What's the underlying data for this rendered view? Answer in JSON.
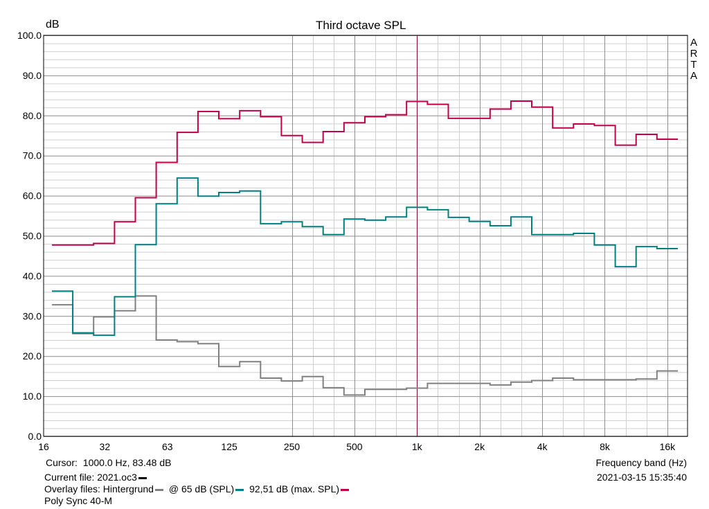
{
  "chart_data": {
    "type": "line",
    "title": "Third octave SPL",
    "ylabel": "dB",
    "xlabel": "Frequency band (Hz)",
    "ylim": [
      0,
      100
    ],
    "xscale": "log",
    "grid": true,
    "yticks": [
      "0.0",
      "10.0",
      "20.0",
      "30.0",
      "40.0",
      "50.0",
      "60.0",
      "70.0",
      "80.0",
      "90.0",
      "100.0"
    ],
    "xtick_labels": [
      "16",
      "32",
      "63",
      "125",
      "250",
      "500",
      "1k",
      "2k",
      "4k",
      "8k",
      "16k"
    ],
    "bands": [
      "20",
      "25",
      "31.5",
      "40",
      "50",
      "63",
      "80",
      "100",
      "125",
      "160",
      "200",
      "250",
      "315",
      "400",
      "500",
      "630",
      "800",
      "1k",
      "1.25k",
      "1.6k",
      "2k",
      "2.5k",
      "3.15k",
      "4k",
      "5k",
      "6.3k",
      "8k",
      "10k",
      "12.5k",
      "16k"
    ],
    "series": [
      {
        "name": "Hintergrund",
        "color": "#808080",
        "values": [
          32.8,
          25.6,
          29.8,
          31.3,
          35.0,
          24.0,
          23.6,
          23.1,
          17.4,
          18.6,
          14.5,
          13.8,
          14.9,
          12.1,
          10.3,
          11.7,
          11.7,
          12.0,
          13.2,
          13.2,
          13.2,
          12.8,
          13.5,
          13.9,
          14.5,
          14.1,
          14.1,
          14.1,
          14.3,
          16.3
        ]
      },
      {
        "name": "@ 65 dB (SPL)",
        "color": "#008080",
        "values": [
          36.2,
          25.8,
          25.2,
          34.8,
          47.8,
          58.0,
          64.4,
          59.9,
          60.8,
          61.2,
          53.0,
          53.5,
          52.3,
          50.3,
          54.2,
          53.9,
          54.7,
          57.1,
          56.5,
          54.6,
          53.6,
          52.5,
          54.7,
          50.3,
          50.3,
          50.6,
          47.7,
          42.3,
          47.3,
          46.8
        ]
      },
      {
        "name": "92,51 dB (max. SPL)",
        "color": "#c0004a",
        "values": [
          47.7,
          47.7,
          48.1,
          53.5,
          59.5,
          68.3,
          75.8,
          81.0,
          79.2,
          81.2,
          79.7,
          75.0,
          73.3,
          76.0,
          78.2,
          79.7,
          80.2,
          83.5,
          82.8,
          79.3,
          79.3,
          81.6,
          83.6,
          82.1,
          76.9,
          77.9,
          77.5,
          72.6,
          75.3,
          74.1
        ]
      }
    ],
    "cursor": {
      "frequency_hz": 1000,
      "color": "#800040"
    },
    "branding": [
      "A",
      "R",
      "T",
      "A"
    ],
    "info": {
      "cursor_label": "Cursor:",
      "cursor_value": "1000.0 Hz, 83.48 dB",
      "current_file": "Current file: 2021.oc3",
      "overlay_prefix": "Overlay files: Hintergrund",
      "overlay_2": "@ 65 dB (SPL)",
      "overlay_3": "92,51 dB (max. SPL)",
      "device": "Poly Sync 40-M",
      "timestamp": "2021-03-15   15:35:40"
    }
  }
}
